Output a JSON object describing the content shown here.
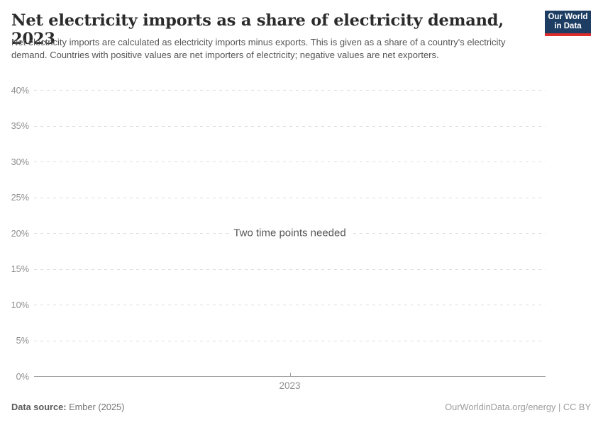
{
  "header": {
    "title": "Net electricity imports as a share of electricity demand, 2023",
    "subtitle": "Net electricity imports are calculated as electricity imports minus exports. This is given as a share of a country's electricity demand. Countries with positive values are net importers of electricity; negative values are net exporters.",
    "logo": {
      "line1": "Our World",
      "line2": "in Data",
      "bg_color": "#1d3d63",
      "accent_color": "#dc2c2c"
    }
  },
  "chart_data": {
    "type": "line",
    "title": "Net electricity imports as a share of electricity demand, 2023",
    "x": [
      2023
    ],
    "xticks": [
      "2023"
    ],
    "series": [],
    "ylim": [
      0,
      40
    ],
    "yticks": [
      0,
      5,
      10,
      15,
      20,
      25,
      30,
      35,
      40
    ],
    "ytick_suffix": "%",
    "grid": true,
    "legend": "none",
    "empty_state_message": "Two time points needed"
  },
  "footer": {
    "source_label": "Data source:",
    "source_value": "Ember (2025)",
    "link": "OurWorldinData.org/energy | CC BY"
  }
}
